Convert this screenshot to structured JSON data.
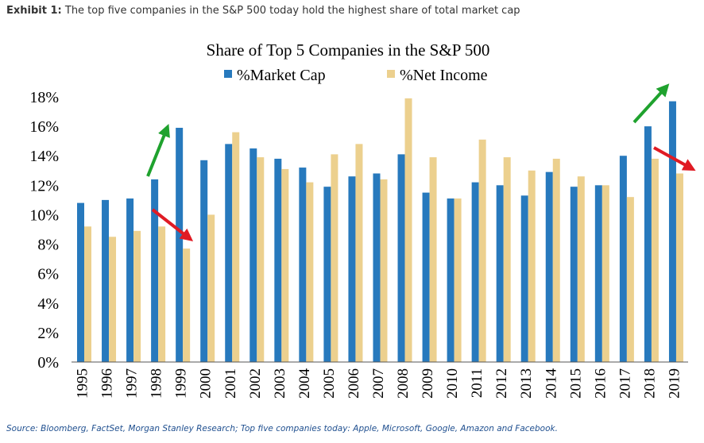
{
  "exhibit": {
    "label": "Exhibit 1:",
    "text": "The top five companies in the S&P 500 today hold the highest share of total market cap"
  },
  "source": "Source: Bloomberg, FactSet, Morgan Stanley Research; Top five companies today: Apple, Microsoft, Google, Amazon and Facebook.",
  "chart_data": {
    "type": "bar",
    "title": "Share of Top 5 Companies in the S&P 500",
    "categories": [
      "1995",
      "1996",
      "1997",
      "1998",
      "1999",
      "2000",
      "2001",
      "2002",
      "2003",
      "2004",
      "2005",
      "2006",
      "2007",
      "2008",
      "2009",
      "2010",
      "2011",
      "2012",
      "2013",
      "2014",
      "2015",
      "2016",
      "2017",
      "2018",
      "2019"
    ],
    "series": [
      {
        "name": "%Market Cap",
        "color": "#2779bd",
        "values": [
          10.8,
          11.0,
          11.1,
          12.4,
          15.9,
          13.7,
          14.8,
          14.5,
          13.8,
          13.2,
          11.9,
          12.6,
          12.8,
          14.1,
          11.5,
          11.1,
          12.2,
          12.0,
          11.3,
          12.9,
          11.9,
          12.0,
          14.0,
          16.0,
          17.7
        ]
      },
      {
        "name": "%Net Income",
        "color": "#ecd08e",
        "values": [
          9.2,
          8.5,
          8.9,
          9.2,
          7.7,
          10.0,
          15.6,
          13.9,
          13.1,
          12.2,
          14.1,
          14.8,
          12.4,
          17.9,
          13.9,
          11.1,
          15.1,
          13.9,
          13.0,
          13.8,
          12.6,
          12.0,
          11.2,
          13.8,
          12.8
        ]
      }
    ],
    "ylim": [
      0,
      18
    ],
    "yticks": [
      "0%",
      "2%",
      "4%",
      "6%",
      "8%",
      "10%",
      "12%",
      "14%",
      "16%",
      "18%"
    ],
    "legend_position": "top",
    "grid": false,
    "annotations": [
      {
        "type": "arrow",
        "color": "#1fa22e",
        "direction": "up",
        "near": "1998"
      },
      {
        "type": "arrow",
        "color": "#e01b24",
        "direction": "down",
        "near": "1999"
      },
      {
        "type": "arrow",
        "color": "#1fa22e",
        "direction": "up",
        "near": "2019"
      },
      {
        "type": "arrow",
        "color": "#e01b24",
        "direction": "down",
        "near": "2019"
      }
    ]
  }
}
